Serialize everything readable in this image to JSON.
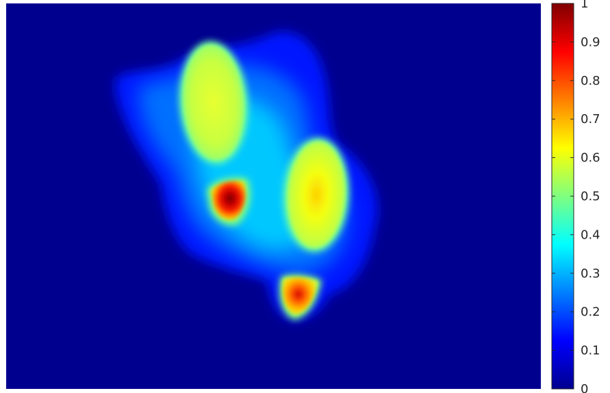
{
  "chart_data": {
    "type": "heatmap",
    "title": "",
    "xlabel": "",
    "ylabel": "",
    "colormap": "jet",
    "background_color": "#00008f",
    "colorbar": {
      "min": 0,
      "max": 1,
      "ticks": [
        "0",
        "0.1",
        "0.2",
        "0.3",
        "0.4",
        "0.5",
        "0.6",
        "0.7",
        "0.8",
        "0.9",
        "1"
      ],
      "levels": 64,
      "position": "right"
    },
    "regions": [
      {
        "name": "upper-left blob",
        "peak": 0.55
      },
      {
        "name": "center-left hot spot",
        "peak": 1.0
      },
      {
        "name": "right blob",
        "peak": 0.6
      },
      {
        "name": "bottom hot spot",
        "peak": 0.85
      },
      {
        "name": "surrounding halo",
        "peak": 0.3
      }
    ],
    "grid": false,
    "axes_visible": false
  }
}
